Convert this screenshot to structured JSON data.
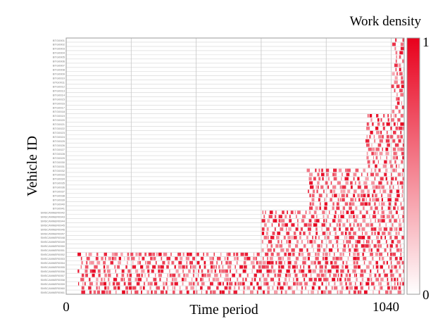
{
  "chart_data": {
    "type": "heatmap",
    "title": "",
    "xlabel": "Time period",
    "ylabel": "Vehicle ID",
    "x_ticks": [
      "0",
      "1040"
    ],
    "xlim": [
      0,
      1040
    ],
    "colorbar": {
      "title": "Work density",
      "min_label": "0",
      "max_label": "1",
      "low_color": "#ffffff",
      "high_color": "#e8001c"
    },
    "grid": true,
    "row_groups": [
      {
        "count": 18,
        "active": [
          [
            1000,
            1040
          ]
        ],
        "label_prefix": "BTG00",
        "label_width": "narrow"
      },
      {
        "count": 13,
        "active": [
          [
            920,
            1040
          ]
        ],
        "label_prefix": "BTG00",
        "label_width": "narrow"
      },
      {
        "count": 10,
        "active": [
          [
            740,
            1040
          ]
        ],
        "label_prefix": "BTG00",
        "label_width": "narrow"
      },
      {
        "count": 10,
        "active": [
          [
            600,
            1040
          ]
        ],
        "label_prefix": "SMSCANNER00",
        "label_width": "wide"
      },
      {
        "count": 10,
        "active": [
          [
            30,
            1040
          ]
        ],
        "label_prefix": "SMSCANNER00",
        "label_width": "wide"
      }
    ]
  }
}
